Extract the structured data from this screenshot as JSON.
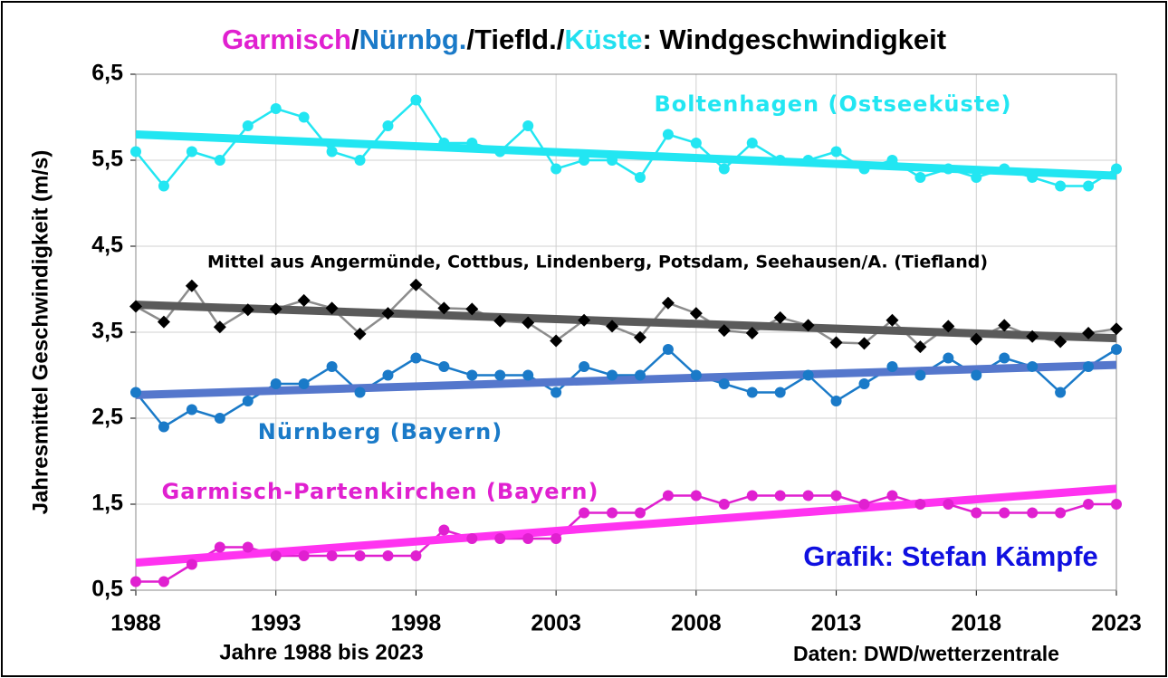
{
  "chart_data": {
    "type": "line",
    "title": [
      {
        "text": "Garmisch",
        "color": "#e020d0"
      },
      {
        "text": "/",
        "color": "#000000"
      },
      {
        "text": "Nürnbg.",
        "color": "#1a7ac8"
      },
      {
        "text": "/Tiefld./",
        "color": "#000000"
      },
      {
        "text": "Küste",
        "color": "#22e0f0"
      },
      {
        "text": ": Windgeschwindigkeit",
        "color": "#000000"
      }
    ],
    "y_label": "Jahresmittel Geschwindigkeit (m/s)",
    "x_label": "Jahre 1988 bis 2023",
    "annotations": [
      "Grafik: Stefan Kämpfe",
      "Daten: DWD/wetterzentrale"
    ],
    "x": [
      1988,
      1989,
      1990,
      1991,
      1992,
      1993,
      1994,
      1995,
      1996,
      1997,
      1998,
      1999,
      2000,
      2001,
      2002,
      2003,
      2004,
      2005,
      2006,
      2007,
      2008,
      2009,
      2010,
      2011,
      2012,
      2013,
      2014,
      2015,
      2016,
      2017,
      2018,
      2019,
      2020,
      2021,
      2022,
      2023
    ],
    "xlim": [
      1988,
      2023
    ],
    "xticks": [
      1988,
      1993,
      1998,
      2003,
      2008,
      2013,
      2018,
      2023
    ],
    "ylim": [
      0.5,
      6.5
    ],
    "yticks": [
      {
        "value": 0.5,
        "label": "0,5"
      },
      {
        "value": 1.5,
        "label": "1,5"
      },
      {
        "value": 2.5,
        "label": "2,5"
      },
      {
        "value": 3.5,
        "label": "3,5"
      },
      {
        "value": 4.5,
        "label": "4,5"
      },
      {
        "value": 5.5,
        "label": "5,5"
      },
      {
        "value": 6.5,
        "label": "6,5"
      }
    ],
    "grid": true,
    "series": [
      {
        "name": "Boltenhagen (Ostseeküste)",
        "color": "#22e6f2",
        "trend_color": "#22e6f2",
        "marker": "circle",
        "values": [
          5.6,
          5.2,
          5.6,
          5.5,
          5.9,
          6.1,
          6.0,
          5.6,
          5.5,
          5.9,
          6.2,
          5.7,
          5.7,
          5.6,
          5.9,
          5.4,
          5.5,
          5.5,
          5.3,
          5.8,
          5.7,
          5.4,
          5.7,
          5.5,
          5.5,
          5.6,
          5.4,
          5.5,
          5.3,
          5.4,
          5.3,
          5.4,
          5.3,
          5.2,
          5.2,
          5.4
        ],
        "trend": {
          "x": [
            1988,
            2023
          ],
          "values": [
            5.8,
            5.32
          ]
        }
      },
      {
        "name": "Mittel aus Angermünde, Cottbus, Lindenberg, Potsdam, Seehausen/A. (Tiefland)",
        "color": "#8c8c8c",
        "trend_color": "#5a5a5a",
        "marker": "diamond",
        "marker_color": "#000000",
        "values": [
          3.8,
          3.62,
          4.04,
          3.56,
          3.76,
          3.77,
          3.87,
          3.78,
          3.48,
          3.72,
          4.05,
          3.78,
          3.77,
          3.63,
          3.61,
          3.4,
          3.64,
          3.57,
          3.44,
          3.84,
          3.72,
          3.52,
          3.49,
          3.67,
          3.58,
          3.38,
          3.37,
          3.64,
          3.33,
          3.57,
          3.42,
          3.58,
          3.45,
          3.39,
          3.49,
          3.54
        ],
        "trend": {
          "x": [
            1988,
            2023
          ],
          "values": [
            3.82,
            3.43
          ]
        }
      },
      {
        "name": "Nürnberg (Bayern)",
        "color": "#1a7ac8",
        "trend_color": "#5577cc",
        "marker": "circle",
        "values": [
          2.8,
          2.4,
          2.6,
          2.5,
          2.7,
          2.9,
          2.9,
          3.1,
          2.8,
          3.0,
          3.2,
          3.1,
          3.0,
          3.0,
          3.0,
          2.8,
          3.1,
          3.0,
          3.0,
          3.3,
          3.0,
          2.9,
          2.8,
          2.8,
          3.0,
          2.7,
          2.9,
          3.1,
          3.0,
          3.2,
          3.0,
          3.2,
          3.1,
          2.8,
          3.1,
          3.3
        ],
        "trend": {
          "x": [
            1988,
            2023
          ],
          "values": [
            2.77,
            3.12
          ]
        }
      },
      {
        "name": "Garmisch-Partenkirchen (Bayern)",
        "color": "#e020d0",
        "trend_color": "#ff33f0",
        "marker": "circle",
        "values": [
          0.6,
          0.6,
          0.8,
          1.0,
          1.0,
          0.9,
          0.9,
          0.9,
          0.9,
          0.9,
          0.9,
          1.2,
          1.1,
          1.1,
          1.1,
          1.1,
          1.4,
          1.4,
          1.4,
          1.6,
          1.6,
          1.5,
          1.6,
          1.6,
          1.6,
          1.6,
          1.5,
          1.6,
          1.5,
          1.5,
          1.4,
          1.4,
          1.4,
          1.4,
          1.5,
          1.5
        ],
        "trend": {
          "x": [
            1988,
            2023
          ],
          "values": [
            0.82,
            1.68
          ]
        }
      }
    ]
  }
}
